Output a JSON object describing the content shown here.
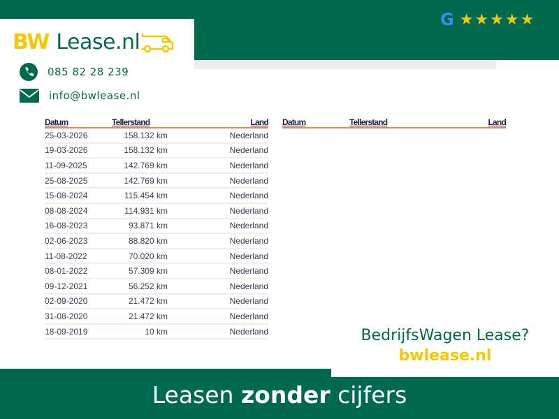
{
  "brand": {
    "logo_bw": "BW",
    "logo_rest": "Lease.nl",
    "primary_color": "#006a4e",
    "accent_color": "#f6c800"
  },
  "contact": {
    "phone": "085 82 28 239",
    "email": "info@bwlease.nl",
    "phone_icon": "phone-icon",
    "email_icon": "envelope-icon"
  },
  "rating": {
    "provider": "Google",
    "stars": 5
  },
  "table": {
    "headers": [
      "Datum",
      "Tellerstand",
      "Land"
    ],
    "rows": [
      [
        "25-03-2026",
        "158.132 km",
        "Nederland"
      ],
      [
        "19-03-2026",
        "158.132 km",
        "Nederland"
      ],
      [
        "11-09-2025",
        "142.769 km",
        "Nederland"
      ],
      [
        "25-08-2025",
        "142.769 km",
        "Nederland"
      ],
      [
        "15-08-2024",
        "115.454 km",
        "Nederland"
      ],
      [
        "08-08-2024",
        "114.931 km",
        "Nederland"
      ],
      [
        "16-08-2023",
        "93.871 km",
        "Nederland"
      ],
      [
        "02-06-2023",
        "88.820 km",
        "Nederland"
      ],
      [
        "11-08-2022",
        "70.020 km",
        "Nederland"
      ],
      [
        "08-01-2022",
        "57.309 km",
        "Nederland"
      ],
      [
        "09-12-2021",
        "56.252 km",
        "Nederland"
      ],
      [
        "02-09-2020",
        "21.472 km",
        "Nederland"
      ],
      [
        "31-08-2020",
        "21.472 km",
        "Nederland"
      ],
      [
        "18-09-2019",
        "10 km",
        "Nederland"
      ]
    ]
  },
  "promo": {
    "question": "BedrijfsWagen Lease?",
    "url": "bwlease.nl"
  },
  "tagline": {
    "pre": "Leasen ",
    "bold": "zonder",
    "post": " cijfers"
  }
}
